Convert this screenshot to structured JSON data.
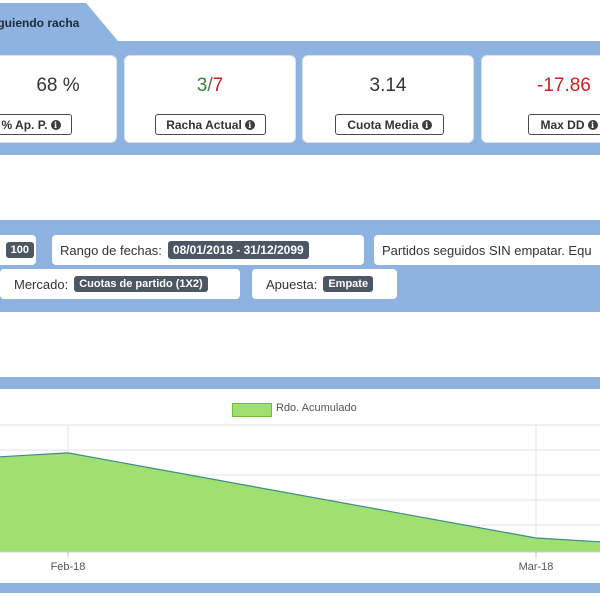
{
  "header": {
    "title": "Siguiendo racha"
  },
  "stats": {
    "ap": {
      "value": "68 %",
      "label": "% Ap. P."
    },
    "racha": {
      "value_a": "3",
      "sep": "/",
      "value_b": "7",
      "label": "Racha Actual"
    },
    "cuota": {
      "value": "3.14",
      "label": "Cuota Media"
    },
    "maxdd": {
      "value": "-17.86",
      "label": "Max DD"
    }
  },
  "filters": {
    "first_value": "100",
    "rango_label": "Rango de fechas:",
    "rango_value": "08/01/2018 - 31/12/2099",
    "partidos_text": "Partidos seguidos SIN empatar. Equ",
    "mercado_label": "Mercado:",
    "mercado_value": "Cuotas de partido (1X2)",
    "apuesta_label": "Apuesta:",
    "apuesta_value": "Empate"
  },
  "colors": {
    "band": "#8fb3e1",
    "positive": "#2e8b2e",
    "negative": "#cc1f1f",
    "area_fill": "#a0e070",
    "area_line": "#3d8a8a"
  },
  "chart_data": {
    "type": "area",
    "legend": [
      "Rdo. Acumulado"
    ],
    "x_ticks": [
      "Feb-18",
      "Mar-18"
    ],
    "series": [
      {
        "name": "Rdo. Acumulado",
        "points": [
          {
            "x": "Jan-18",
            "y": 7.5
          },
          {
            "x": "Feb-18",
            "y": 7.8
          },
          {
            "x": "Mar-18",
            "y": 1.1
          },
          {
            "x": "Mar-18+",
            "y": 0.8
          }
        ]
      }
    ],
    "grid": true,
    "legend_position": "top-center"
  }
}
